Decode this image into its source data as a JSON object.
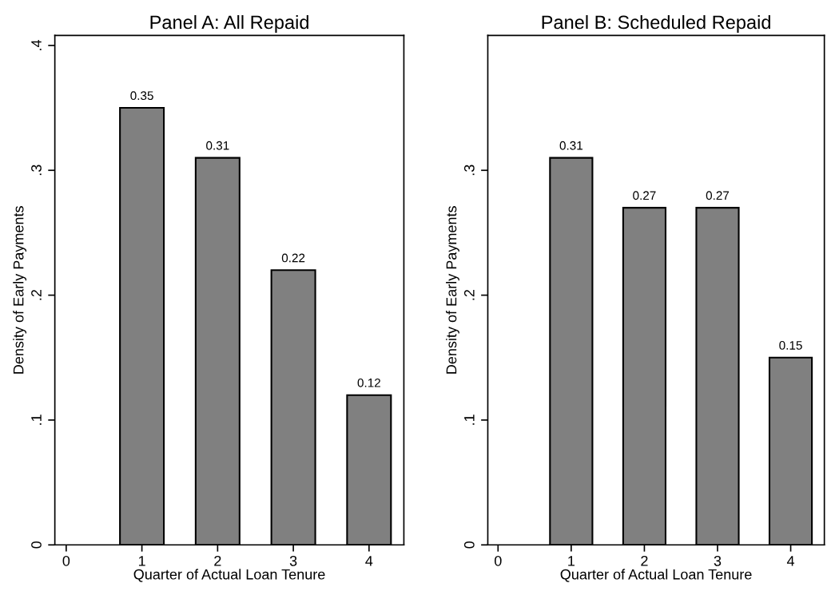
{
  "chart_data": [
    {
      "type": "bar",
      "title": "Panel A: All Repaid",
      "xlabel": "Quarter of Actual Loan Tenure",
      "ylabel": "Density of Early Payments",
      "x": [
        1,
        2,
        3,
        4
      ],
      "values": [
        0.35,
        0.31,
        0.22,
        0.12
      ],
      "color": "#808080",
      "data_labels": true,
      "xlim": [
        -0.15,
        4.46
      ],
      "xticks": [
        0,
        1,
        2,
        3,
        4
      ],
      "ylim": [
        0,
        0.408
      ],
      "yticks": [
        {
          "value": 0,
          "label": "0"
        },
        {
          "value": 0.1,
          "label": ".1"
        },
        {
          "value": 0.2,
          "label": ".2"
        },
        {
          "value": 0.3,
          "label": ".3"
        },
        {
          "value": 0.4,
          "label": ".4"
        }
      ],
      "grid": false
    },
    {
      "type": "bar",
      "title": "Panel B: Scheduled Repaid",
      "xlabel": "Quarter of Actual Loan Tenure",
      "ylabel": "Density of Early Payments",
      "x": [
        1,
        2,
        3,
        4
      ],
      "values": [
        0.31,
        0.27,
        0.27,
        0.15
      ],
      "color": "#808080",
      "data_labels": true,
      "xlim": [
        -0.14,
        4.46
      ],
      "xticks": [
        0,
        1,
        2,
        3,
        4
      ],
      "ylim": [
        0,
        0.408
      ],
      "yticks": [
        {
          "value": 0,
          "label": "0"
        },
        {
          "value": 0.1,
          "label": ".1"
        },
        {
          "value": 0.2,
          "label": ".2"
        },
        {
          "value": 0.3,
          "label": ".3"
        }
      ],
      "grid": false
    }
  ]
}
